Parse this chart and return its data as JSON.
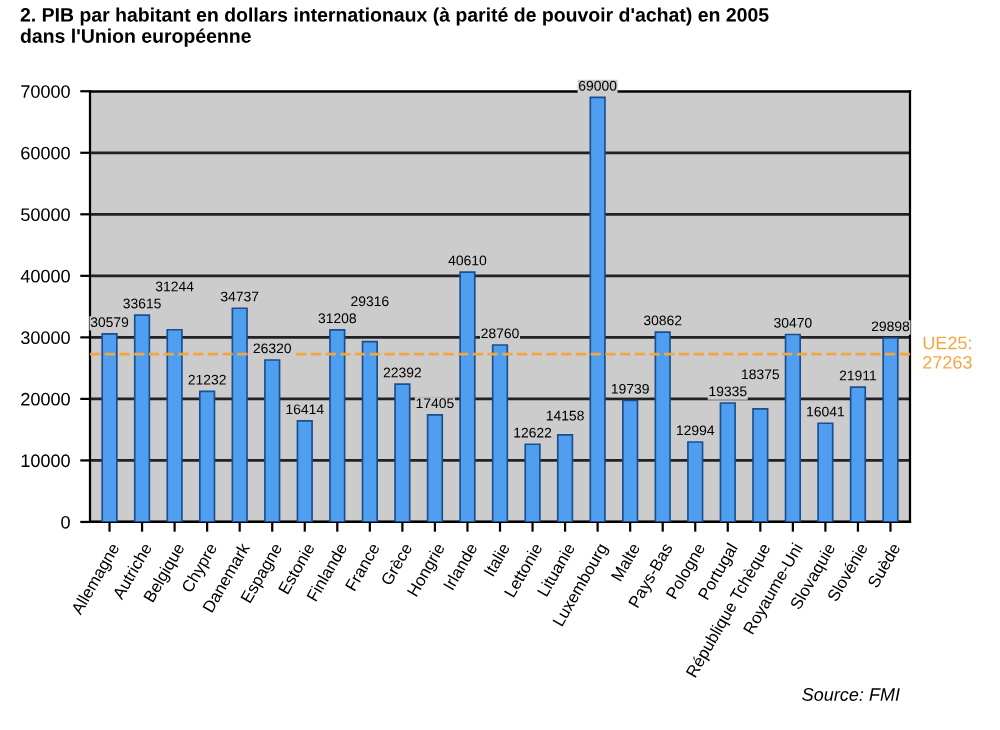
{
  "chart_data": {
    "type": "bar",
    "title": "2. PIB par habitant en dollars internationaux (à parité de pouvoir d'achat) en 2005\ndans l'Union européenne",
    "categories": [
      "Allemagne",
      "Autriche",
      "Belgique",
      "Chypre",
      "Danemark",
      "Espagne",
      "Estonie",
      "Finlande",
      "France",
      "Grèce",
      "Hongrie",
      "Irlande",
      "Italie",
      "Lettonie",
      "Lituanie",
      "Luxembourg",
      "Malte",
      "Pays-Bas",
      "Pologne",
      "Portugal",
      "République Tchèque",
      "Royaume-Uni",
      "Slovaquie",
      "Slovénie",
      "Suède"
    ],
    "values": [
      30579,
      33615,
      31244,
      21232,
      34737,
      26320,
      16414,
      31208,
      29316,
      22392,
      17405,
      40610,
      28760,
      12622,
      14158,
      69000,
      19739,
      30862,
      12994,
      19335,
      18375,
      30470,
      16041,
      21911,
      29898
    ],
    "color": "#4f9ef0",
    "data_labels": true,
    "ylim": [
      0,
      70000
    ],
    "yticks": [
      0,
      10000,
      20000,
      30000,
      40000,
      50000,
      60000,
      70000
    ],
    "grid": "y",
    "ref_lines": [
      {
        "axis": "y",
        "value": 27263,
        "label": "UE25:\n27263",
        "color": "#f5a540",
        "line_style": "dashed"
      }
    ],
    "annotations": [
      "Source: FMI"
    ]
  }
}
